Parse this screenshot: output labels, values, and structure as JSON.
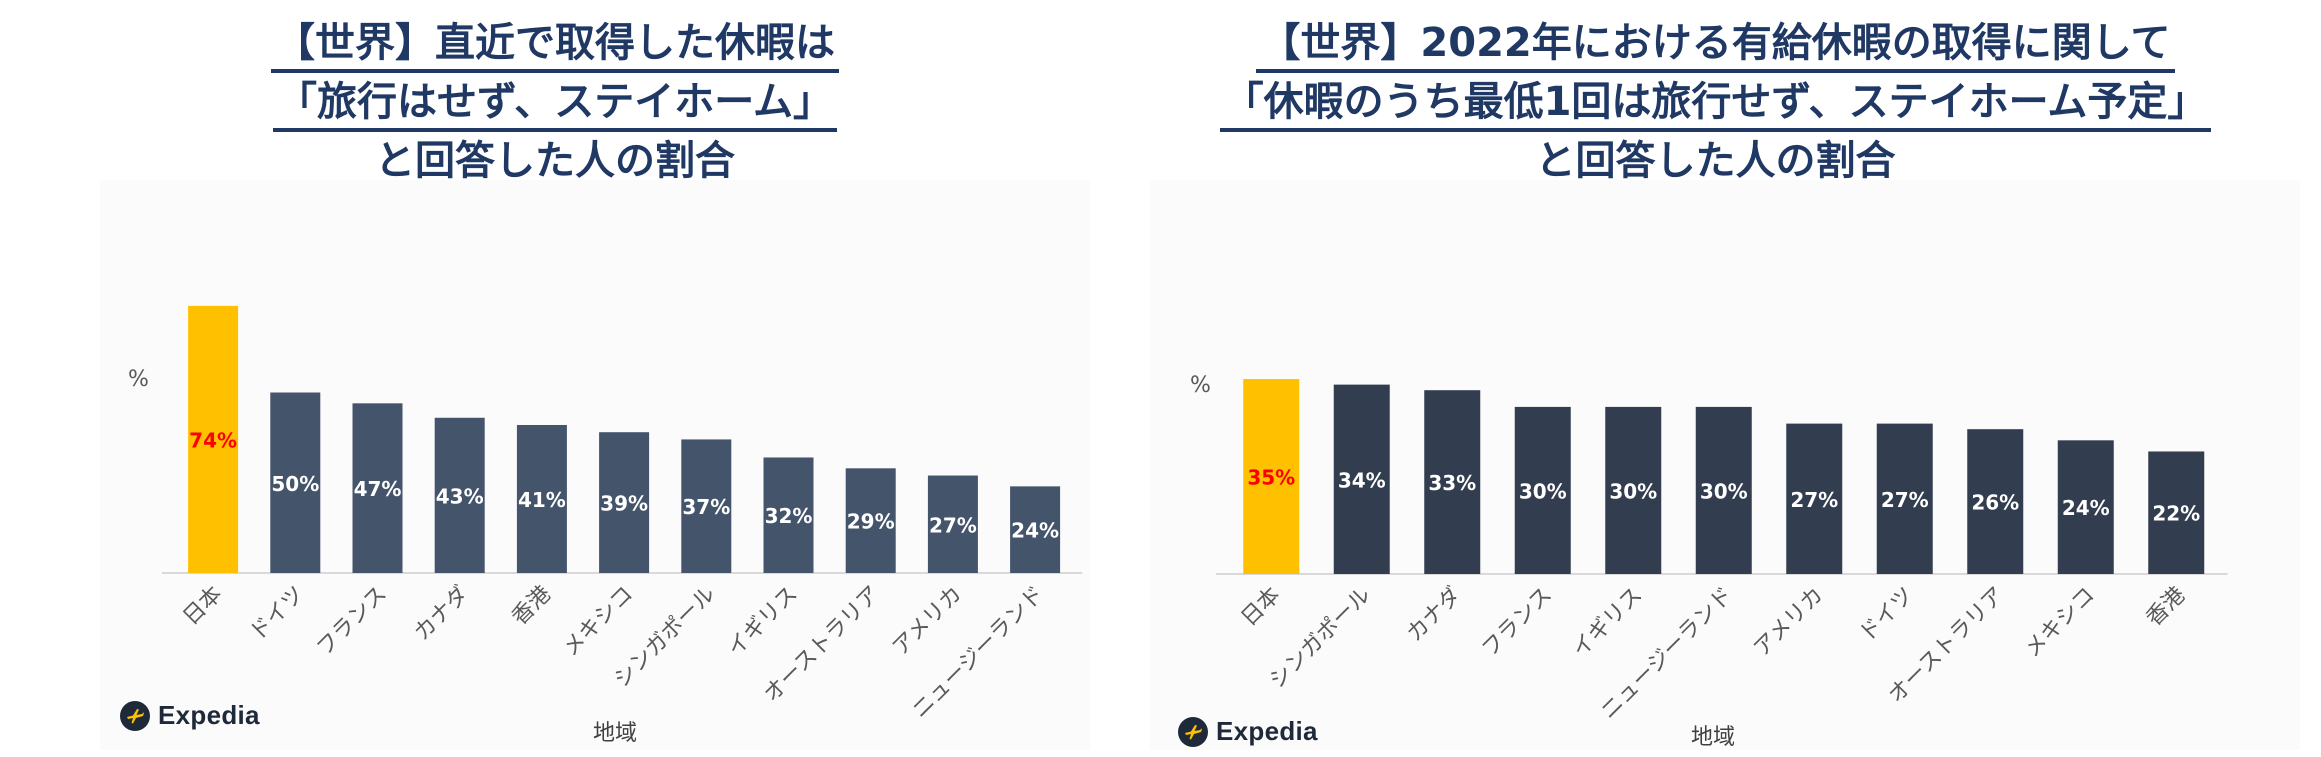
{
  "colors": {
    "title": "#1f3864",
    "highlight": "#ffc000",
    "bar_left": "#44546a",
    "bar_right": "#323e4f",
    "label_on_bar": "#ffffff",
    "label_highlight": "#ff0000",
    "axis_text": "#595959"
  },
  "brand": {
    "icon": "plane-icon",
    "name": "Expedia"
  },
  "chart_data": [
    {
      "type": "bar",
      "title_lines": [
        "【世界】直近で取得した休暇は",
        "「旅行はせず、ステイホーム」",
        "と回答した人の割合"
      ],
      "xlabel": "地域",
      "ylabel": "%",
      "ylim": [
        0,
        100
      ],
      "grid": false,
      "highlight_index": 0,
      "categories": [
        "日本",
        "ドイツ",
        "フランス",
        "カナダ",
        "香港",
        "メキシコ",
        "シンガポール",
        "イギリス",
        "オーストラリア",
        "アメリカ",
        "ニュージーランド"
      ],
      "values": [
        74,
        50,
        47,
        43,
        41,
        39,
        37,
        32,
        29,
        27,
        24
      ],
      "value_labels": [
        "74%",
        "50%",
        "47%",
        "43%",
        "41%",
        "39%",
        "37%",
        "32%",
        "29%",
        "27%",
        "24%"
      ]
    },
    {
      "type": "bar",
      "title_lines": [
        "【世界】2022年における有給休暇の取得に関して",
        "「休暇のうち最低1回は旅行せず、ステイホーム予定」",
        "と回答した人の割合"
      ],
      "xlabel": "地域",
      "ylabel": "%",
      "ylim": [
        0,
        100
      ],
      "grid": false,
      "highlight_index": 0,
      "categories": [
        "日本",
        "シンガポール",
        "カナダ",
        "フランス",
        "イギリス",
        "ニュージーランド",
        "アメリカ",
        "ドイツ",
        "オーストラリア",
        "メキシコ",
        "香港"
      ],
      "values": [
        35,
        34,
        33,
        30,
        30,
        30,
        27,
        27,
        26,
        24,
        22
      ],
      "value_labels": [
        "35%",
        "34%",
        "33%",
        "30%",
        "30%",
        "30%",
        "27%",
        "27%",
        "26%",
        "24%",
        "22%"
      ]
    }
  ]
}
